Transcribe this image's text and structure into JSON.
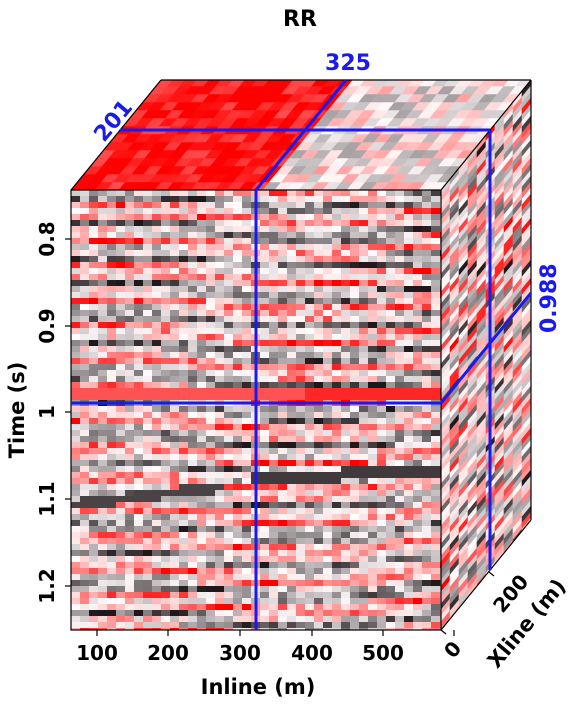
{
  "title": "RR",
  "axes": {
    "time": {
      "label": "Time (s)",
      "ticks": [
        "0.8",
        "0.9",
        "1",
        "1.1",
        "1.2"
      ]
    },
    "inline": {
      "label": "Inline (m)",
      "ticks": [
        "100",
        "200",
        "300",
        "400",
        "500"
      ]
    },
    "xline": {
      "label": "Xline (m)",
      "ticks": [
        "0",
        "200"
      ]
    }
  },
  "slice_markers": {
    "inline": "325",
    "xline": "201",
    "time": "0.988"
  },
  "colors": {
    "accent": "#1a1aee",
    "positive": "#ff0000",
    "negative": "#1a1a1a",
    "background": "#ffffff"
  }
}
